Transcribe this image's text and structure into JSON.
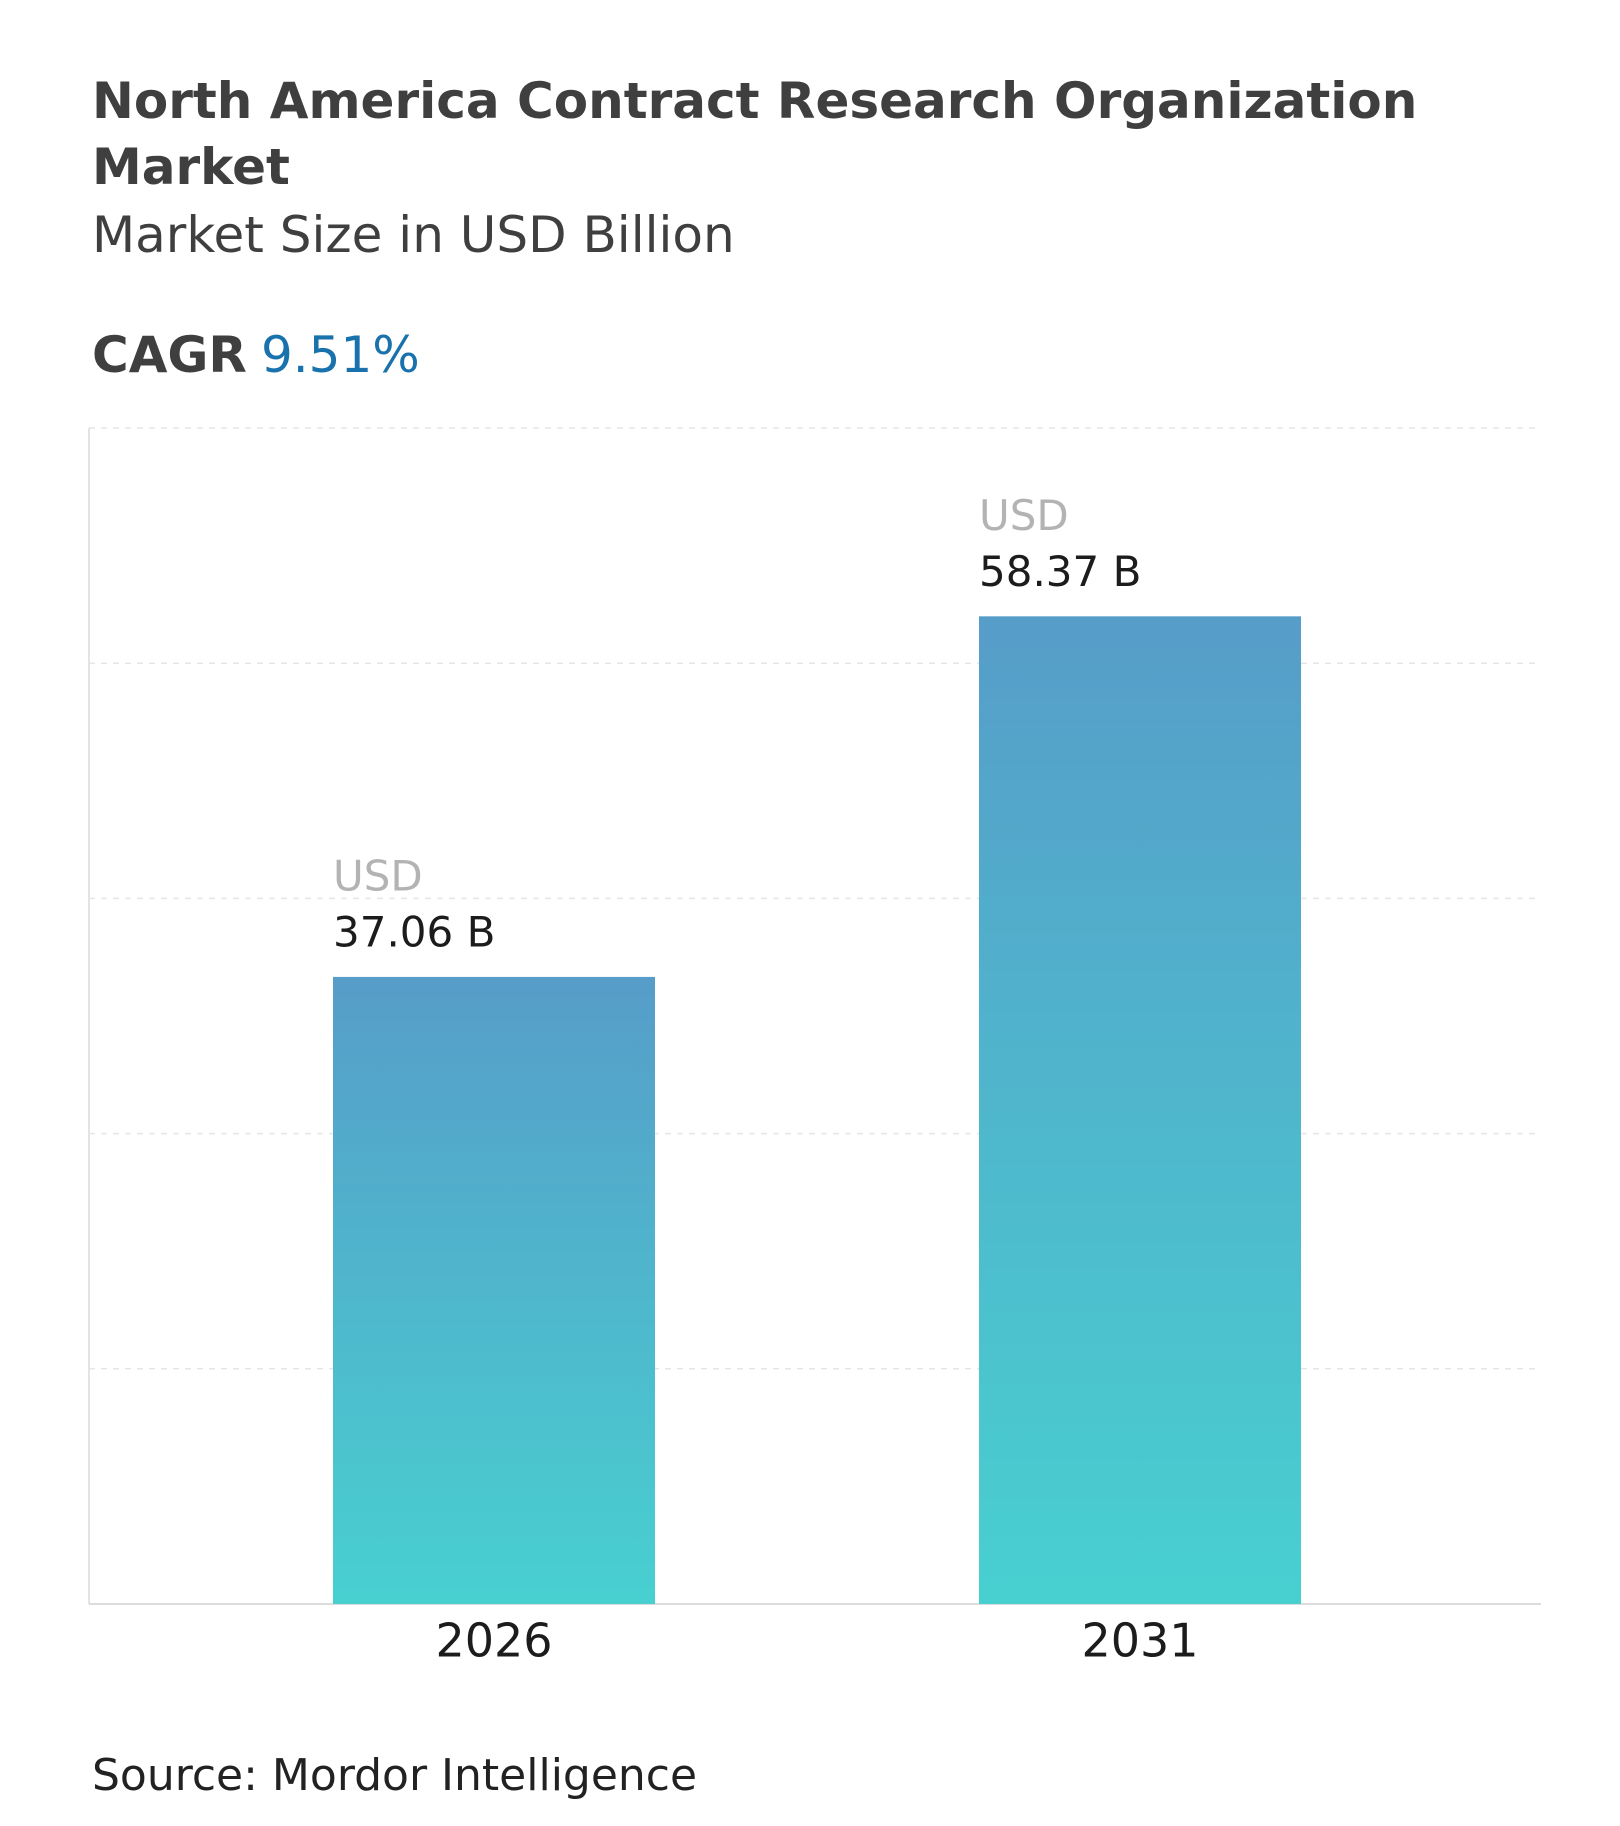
{
  "chart_data": {
    "type": "bar",
    "title": "North America Contract Research Organization Market",
    "subtitle": "Market Size in USD Billion",
    "cagr_label": "CAGR",
    "cagr_value": "9.51%",
    "categories": [
      "2026",
      "2031"
    ],
    "values": [
      37.06,
      58.37
    ],
    "value_labels": [
      "37.06 B",
      "58.37 B"
    ],
    "value_label_unit": "USD",
    "color": [
      "#569dc9",
      "#48d0d0"
    ],
    "ylim": [
      0,
      69.5
    ],
    "grid": true,
    "source": "Source: Mordor Intelligence"
  }
}
